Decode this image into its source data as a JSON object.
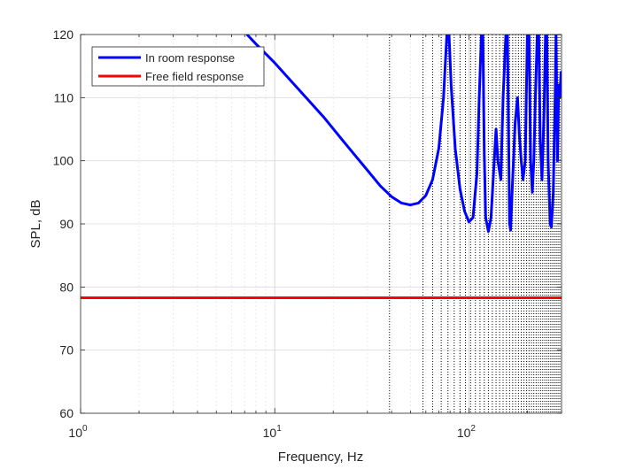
{
  "chart_data": {
    "type": "line",
    "xscale": "log",
    "xlim": [
      1,
      300
    ],
    "ylim": [
      60,
      120
    ],
    "xlabel": "Frequency, Hz",
    "ylabel": "SPL, dB",
    "grid": true,
    "legend_location": "top-left",
    "y_ticks": [
      "60",
      "70",
      "80",
      "90",
      "100",
      "110",
      "120"
    ],
    "x_ticks": [
      {
        "base": "10",
        "exp": "0"
      },
      {
        "base": "10",
        "exp": "1"
      },
      {
        "base": "10",
        "exp": "2"
      }
    ],
    "mode_lines_hz": [
      39,
      58,
      65,
      72,
      78,
      84,
      90,
      96,
      102,
      108,
      114,
      120,
      126,
      132,
      138,
      144,
      150,
      156,
      162,
      168,
      174,
      180,
      186,
      192,
      198,
      204,
      210,
      216,
      222,
      228,
      234,
      240,
      246,
      252,
      258,
      264,
      270,
      276,
      282,
      288,
      294
    ],
    "series": [
      {
        "name": "In room response",
        "color": "#0000ff",
        "points": [
          [
            7.2,
            120
          ],
          [
            8,
            118.5
          ],
          [
            10,
            115.5
          ],
          [
            12,
            112.8
          ],
          [
            15,
            109.5
          ],
          [
            18,
            106.8
          ],
          [
            22,
            103.5
          ],
          [
            26,
            100.8
          ],
          [
            30,
            98.5
          ],
          [
            35,
            96.0
          ],
          [
            40,
            94.3
          ],
          [
            45,
            93.3
          ],
          [
            50,
            93.0
          ],
          [
            55,
            93.3
          ],
          [
            60,
            94.5
          ],
          [
            65,
            97.0
          ],
          [
            70,
            102
          ],
          [
            74,
            110
          ],
          [
            77,
            120
          ],
          [
            79,
            120
          ],
          [
            81,
            112
          ],
          [
            85,
            102
          ],
          [
            90,
            95.5
          ],
          [
            95,
            92.0
          ],
          [
            100,
            90.3
          ],
          [
            105,
            91
          ],
          [
            110,
            98
          ],
          [
            113,
            110
          ],
          [
            116,
            120
          ],
          [
            118,
            120
          ],
          [
            120,
            101
          ],
          [
            122,
            91
          ],
          [
            126,
            88.8
          ],
          [
            130,
            91
          ],
          [
            135,
            100
          ],
          [
            138,
            105
          ],
          [
            141,
            100
          ],
          [
            146,
            97
          ],
          [
            150,
            110
          ],
          [
            155,
            120
          ],
          [
            158,
            120
          ],
          [
            162,
            90
          ],
          [
            164,
            89
          ],
          [
            168,
            97
          ],
          [
            173,
            106
          ],
          [
            178,
            110
          ],
          [
            182,
            104
          ],
          [
            186,
            100
          ],
          [
            190,
            97
          ],
          [
            195,
            100
          ],
          [
            200,
            120
          ],
          [
            204,
            120
          ],
          [
            208,
            100
          ],
          [
            212,
            95
          ],
          [
            216,
            100
          ],
          [
            220,
            110
          ],
          [
            225,
            120
          ],
          [
            229,
            120
          ],
          [
            233,
            103
          ],
          [
            238,
            97
          ],
          [
            244,
            108
          ],
          [
            248,
            120
          ],
          [
            252,
            120
          ],
          [
            256,
            100
          ],
          [
            262,
            90
          ],
          [
            266,
            89.5
          ],
          [
            272,
            95
          ],
          [
            278,
            110
          ],
          [
            281,
            120
          ],
          [
            286,
            100
          ],
          [
            290,
            112
          ],
          [
            294,
            110
          ],
          [
            298,
            114
          ]
        ]
      },
      {
        "name": "Free field response",
        "color": "#ff0000",
        "points": [
          [
            1,
            78.3
          ],
          [
            300,
            78.3
          ]
        ]
      }
    ]
  }
}
